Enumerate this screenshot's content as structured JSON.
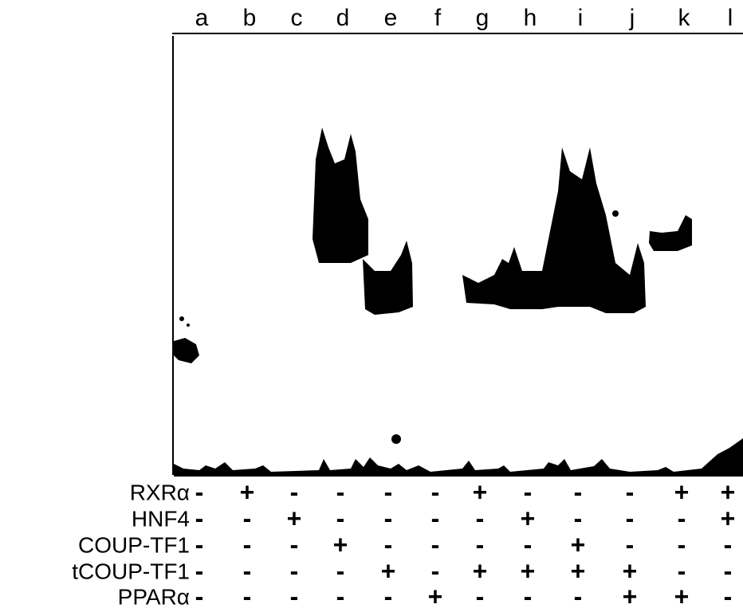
{
  "lanes": [
    "a",
    "b",
    "c",
    "d",
    "e",
    "f",
    "g",
    "h",
    "i",
    "j",
    "k",
    "l"
  ],
  "rows": [
    {
      "label": "RXRα",
      "signs": [
        "-",
        "+",
        "-",
        "-",
        "-",
        "-",
        "+",
        "-",
        "-",
        "-",
        "+",
        "+"
      ]
    },
    {
      "label": "HNF4",
      "signs": [
        "-",
        "-",
        "+",
        "-",
        "-",
        "-",
        "-",
        "+",
        "-",
        "-",
        "-",
        "+"
      ]
    },
    {
      "label": "COUP-TF1",
      "signs": [
        "-",
        "-",
        "-",
        "+",
        "-",
        "-",
        "-",
        "-",
        "+",
        "-",
        "-",
        "-"
      ]
    },
    {
      "label": "tCOUP-TF1",
      "signs": [
        "-",
        "-",
        "-",
        "-",
        "+",
        "-",
        "+",
        "+",
        "+",
        "+",
        "-",
        "-"
      ]
    },
    {
      "label": "PPARα",
      "signs": [
        "-",
        "-",
        "-",
        "-",
        "-",
        "+",
        "-",
        "-",
        "-",
        "+",
        "+",
        "-"
      ]
    }
  ]
}
